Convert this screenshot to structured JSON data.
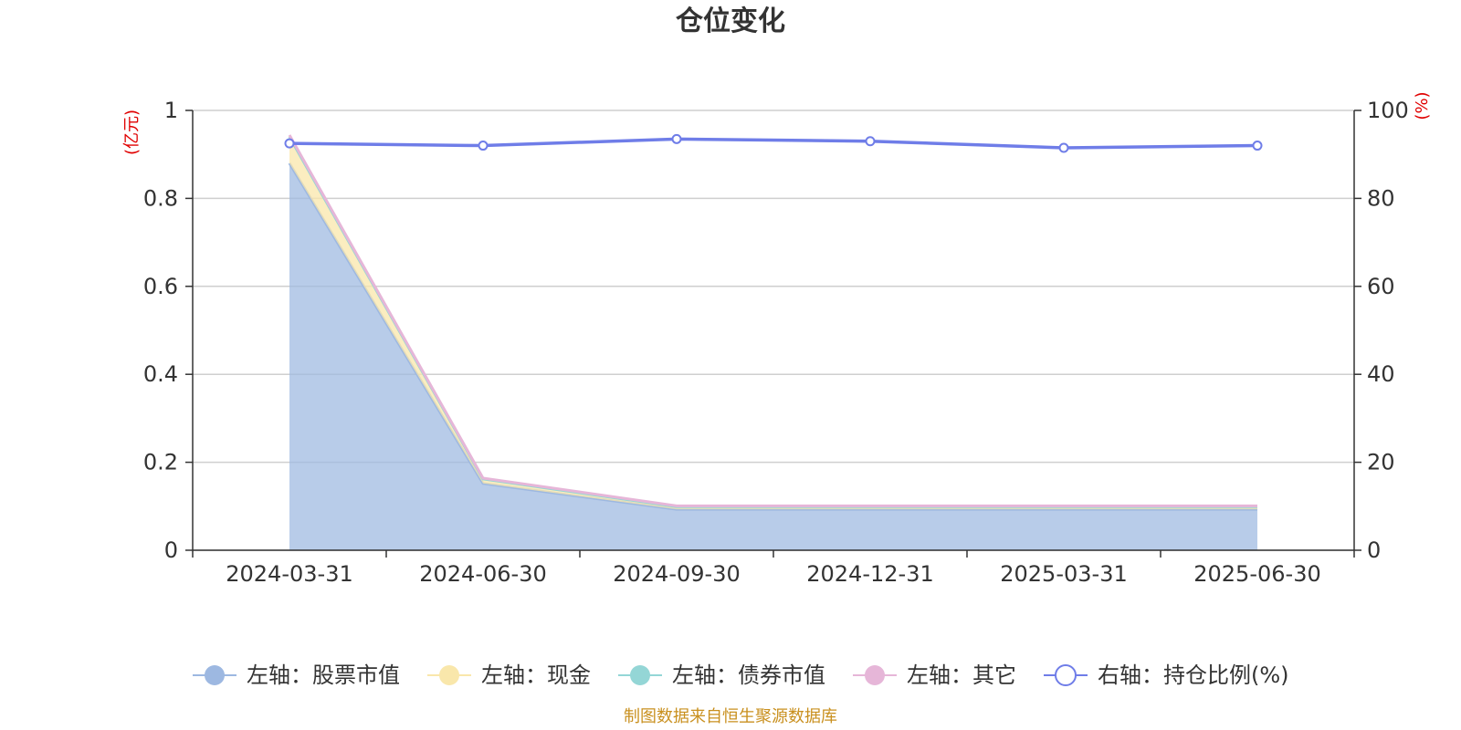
{
  "chart_data": {
    "type": "area",
    "title": "仓位变化",
    "categories": [
      "2024-03-31",
      "2024-06-30",
      "2024-09-30",
      "2024-12-31",
      "2025-03-31",
      "2025-06-30"
    ],
    "left_axis": {
      "unit": "(亿元)",
      "ylim": [
        0,
        1
      ],
      "ticks": [
        "0",
        "0.2",
        "0.4",
        "0.6",
        "0.8",
        "1"
      ]
    },
    "right_axis": {
      "unit": "(%)",
      "ylim": [
        0,
        100
      ],
      "ticks": [
        "0",
        "20",
        "40",
        "60",
        "80",
        "100"
      ]
    },
    "series": [
      {
        "name": "左轴：股票市值",
        "axis": "left",
        "kind": "area",
        "color": "#9db8e1",
        "values": [
          0.88,
          0.152,
          0.093,
          0.093,
          0.093,
          0.093
        ]
      },
      {
        "name": "左轴：现金",
        "axis": "left",
        "kind": "area",
        "color": "#f9e7ab",
        "values": [
          0.06,
          0.01,
          0.006,
          0.006,
          0.006,
          0.006
        ]
      },
      {
        "name": "左轴：债券市值",
        "axis": "left",
        "kind": "area",
        "color": "#94d6d6",
        "values": [
          0,
          0,
          0,
          0,
          0,
          0
        ]
      },
      {
        "name": "左轴：其它",
        "axis": "left",
        "kind": "area",
        "color": "#e6b6d8",
        "values": [
          0.004,
          0.002,
          0.002,
          0.002,
          0.002,
          0.002
        ]
      },
      {
        "name": "右轴：持仓比例(%)",
        "axis": "right",
        "kind": "line",
        "color": "#6f7de8",
        "values": [
          92.5,
          92.0,
          93.5,
          93.0,
          91.5,
          92.0
        ]
      }
    ],
    "grid": true,
    "legend_position": "bottom"
  },
  "footer": {
    "source": "制图数据来自恒生聚源数据库"
  }
}
